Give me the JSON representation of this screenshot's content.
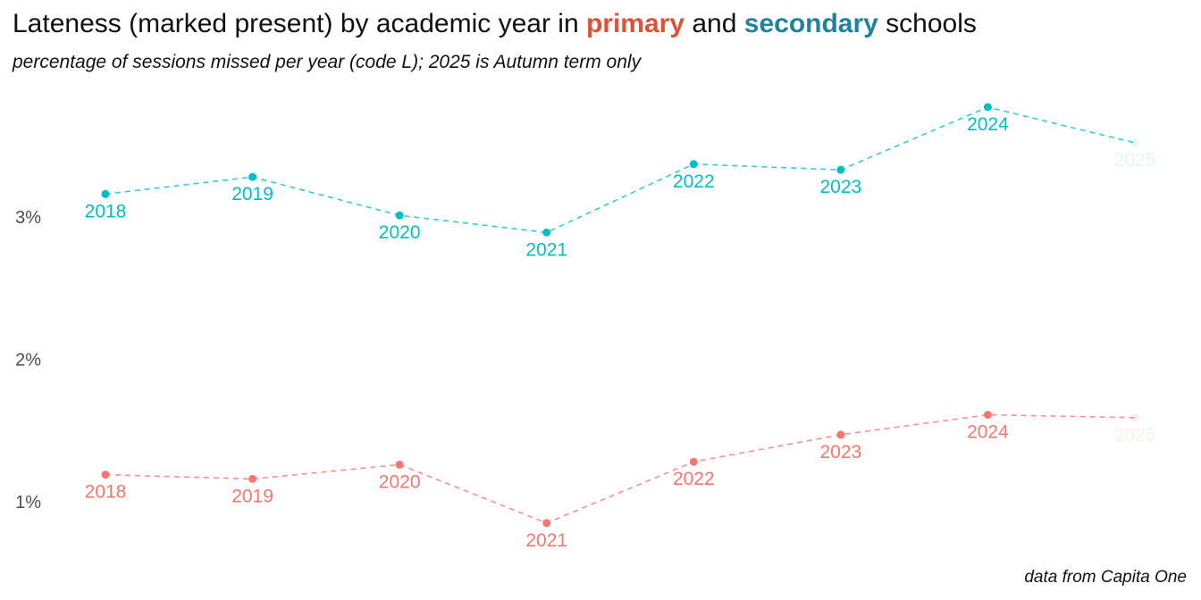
{
  "title": {
    "prefix": "Lateness (marked present) by academic year in ",
    "primary_word": "primary",
    "middle": " and ",
    "secondary_word": "secondary",
    "suffix": " schools"
  },
  "subtitle": "percentage of sessions missed per year (code L); 2025 is Autumn term only",
  "caption": "data from Capita One",
  "colors": {
    "primary": "#f8766d",
    "secondary": "#00bfc4",
    "primary_title": "#d9543a",
    "secondary_title": "#1f82a0"
  },
  "chart_data": {
    "type": "line",
    "title": "Lateness (marked present) by academic year in primary and secondary schools",
    "subtitle": "percentage of sessions missed per year (code L); 2025 is Autumn term only",
    "x": [
      "2018",
      "2019",
      "2020",
      "2021",
      "2022",
      "2023",
      "2024",
      "2025"
    ],
    "y_ticks": [
      "1%",
      "2%",
      "3%"
    ],
    "ylim": [
      0.78,
      3.82
    ],
    "grid": false,
    "legend": "none (series identified by coloured words in title)",
    "series": [
      {
        "name": "primary",
        "values": [
          1.19,
          1.16,
          1.26,
          0.85,
          1.28,
          1.47,
          1.61,
          1.59
        ],
        "partial_year": "2025"
      },
      {
        "name": "secondary",
        "values": [
          3.16,
          3.28,
          3.01,
          2.89,
          3.37,
          3.33,
          3.77,
          3.52
        ],
        "partial_year": "2025"
      }
    ]
  }
}
